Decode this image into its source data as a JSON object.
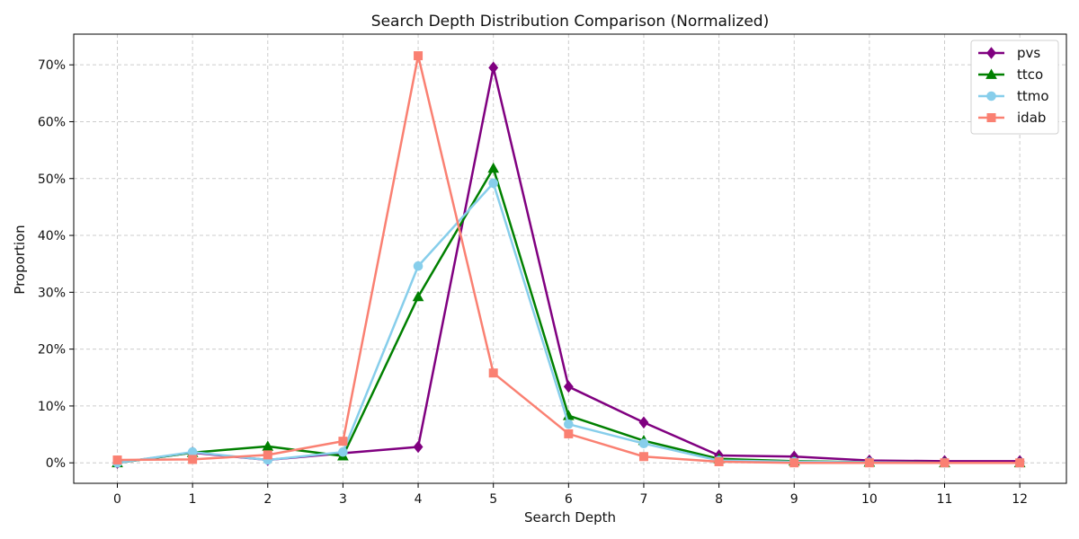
{
  "chart_data": {
    "type": "line",
    "title": "Search Depth Distribution Comparison (Normalized)",
    "xlabel": "Search Depth",
    "ylabel": "Proportion",
    "x": [
      0,
      1,
      2,
      3,
      4,
      5,
      6,
      7,
      8,
      9,
      10,
      11,
      12
    ],
    "x_tick_labels": [
      "0",
      "1",
      "2",
      "3",
      "4",
      "5",
      "6",
      "7",
      "8",
      "9",
      "10",
      "11",
      "12"
    ],
    "xlim": [
      -0.58,
      12.62
    ],
    "ylim": [
      -0.036,
      0.754
    ],
    "y_ticks": [
      0,
      0.1,
      0.2,
      0.3,
      0.4,
      0.5,
      0.6,
      0.7
    ],
    "y_tick_labels": [
      "0%",
      "10%",
      "20%",
      "30%",
      "40%",
      "50%",
      "60%",
      "70%"
    ],
    "grid": true,
    "legend_position": "top-right",
    "series": [
      {
        "name": "pvs",
        "color": "#800080",
        "marker": "diamond",
        "values": [
          0.0,
          0.018,
          0.005,
          0.017,
          0.028,
          0.695,
          0.134,
          0.071,
          0.013,
          0.011,
          0.004,
          0.003,
          0.003
        ]
      },
      {
        "name": "ttco",
        "color": "#008000",
        "marker": "triangle",
        "values": [
          0.0,
          0.018,
          0.029,
          0.012,
          0.292,
          0.518,
          0.083,
          0.039,
          0.007,
          0.003,
          0.001,
          0.0,
          0.0
        ]
      },
      {
        "name": "ttmo",
        "color": "#87CEEB",
        "marker": "circle",
        "values": [
          0.0,
          0.019,
          0.005,
          0.019,
          0.346,
          0.492,
          0.068,
          0.034,
          0.004,
          0.002,
          0.001,
          0.0,
          0.0
        ]
      },
      {
        "name": "idab",
        "color": "#FA8072",
        "marker": "square",
        "values": [
          0.005,
          0.006,
          0.014,
          0.038,
          0.716,
          0.158,
          0.051,
          0.011,
          0.002,
          0.0,
          0.0,
          0.0,
          0.0
        ]
      }
    ]
  }
}
